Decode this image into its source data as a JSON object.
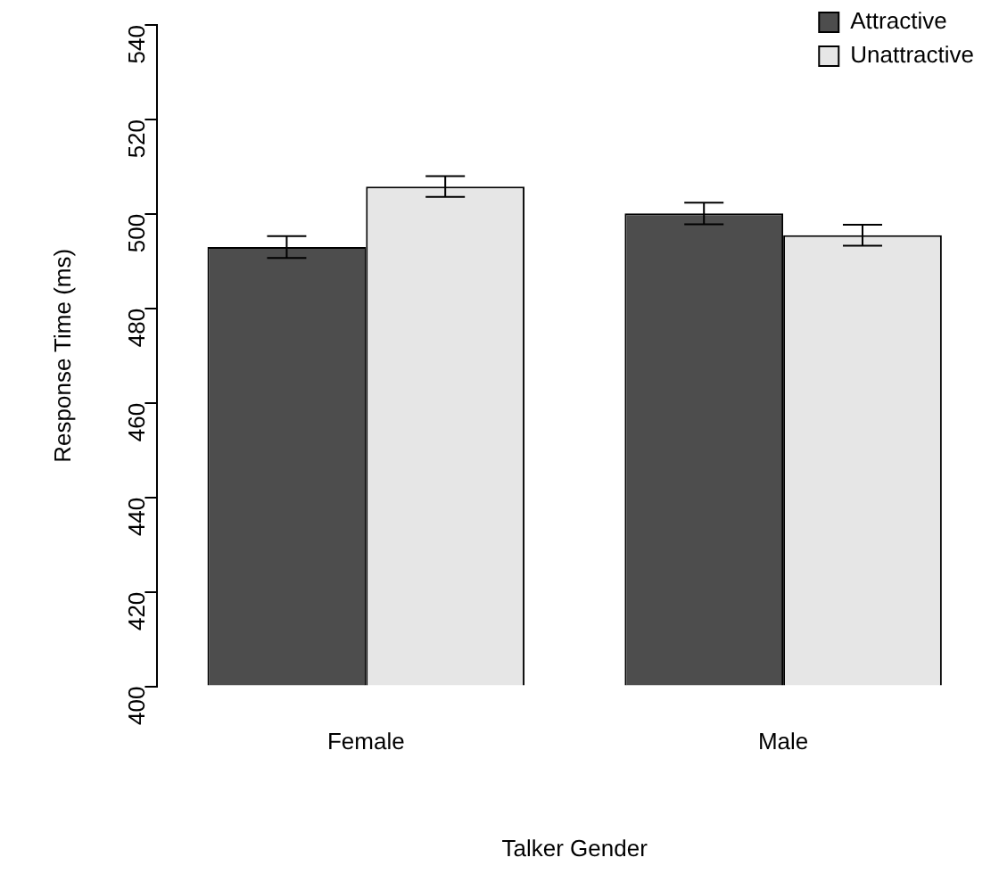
{
  "chart_data": {
    "type": "bar",
    "xlabel": "Talker Gender",
    "ylabel": "Response Time (ms)",
    "categories": [
      "Female",
      "Male"
    ],
    "series": [
      {
        "name": "Attractive",
        "color": "#4d4d4d",
        "values": [
          493,
          500.1
        ],
        "errors": [
          2.3,
          2.3
        ]
      },
      {
        "name": "Unattractive",
        "color": "#e6e6e6",
        "values": [
          505.8,
          495.5
        ],
        "errors": [
          2.2,
          2.2
        ]
      }
    ],
    "ylim": [
      400,
      540
    ],
    "yticks": [
      400,
      420,
      440,
      460,
      480,
      500,
      520,
      540
    ],
    "grid": false,
    "legend": "top right"
  }
}
